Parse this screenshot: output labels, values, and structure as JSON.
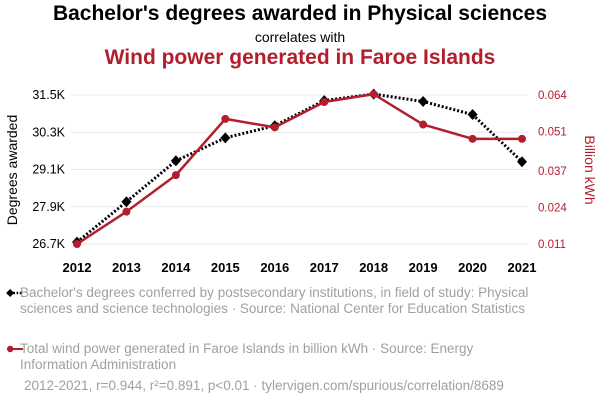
{
  "header": {
    "title": "Bachelor's degrees awarded in Physical sciences",
    "subtitle": "correlates with",
    "title2": "Wind power generated in Faroe Islands"
  },
  "chart_data": {
    "type": "line",
    "x": [
      2012,
      2013,
      2014,
      2015,
      2016,
      2017,
      2018,
      2019,
      2020,
      2021
    ],
    "series": [
      {
        "name": "Bachelor's degrees conferred by postsecondary institutions, in field of study: Physical sciences and science technologies · Source: National Center for Education Statistics",
        "axis": "left",
        "color": "#000000",
        "style": "dotted",
        "marker": "diamond",
        "values": [
          26760,
          28060,
          29380,
          30120,
          30510,
          31320,
          31530,
          31290,
          30870,
          29350
        ]
      },
      {
        "name": "Total wind power generated in Faroe Islands in billion kWh · Source: Energy Information Administration",
        "axis": "right",
        "color": "#b21e2d",
        "style": "solid",
        "marker": "circle",
        "values": [
          0.011,
          0.0225,
          0.0355,
          0.0555,
          0.0525,
          0.0615,
          0.0643,
          0.0535,
          0.0484,
          0.0484
        ]
      }
    ],
    "y_left": {
      "label": "Degrees awarded",
      "ticks": [
        26700,
        27900,
        29100,
        30300,
        31500
      ],
      "tick_labels": [
        "26.7K",
        "27.9K",
        "29.1K",
        "30.3K",
        "31.5K"
      ],
      "range": [
        26700,
        31500
      ]
    },
    "y_right": {
      "label": "Billion kWh",
      "ticks": [
        0.011,
        0.024,
        0.037,
        0.051,
        0.064
      ],
      "tick_labels": [
        "0.011",
        "0.024",
        "0.037",
        "0.051",
        "0.064"
      ],
      "range": [
        0.011,
        0.064
      ]
    },
    "grid": true
  },
  "footer": {
    "stats": "2012-2021, r=0.944, r²=0.891, p<0.01 · tylervigen.com/spurious/correlation/8689"
  },
  "colors": {
    "series_a": "#000000",
    "series_b": "#b21e2d",
    "grid": "#e8e8e8",
    "muted_text": "#a0a0a0"
  }
}
